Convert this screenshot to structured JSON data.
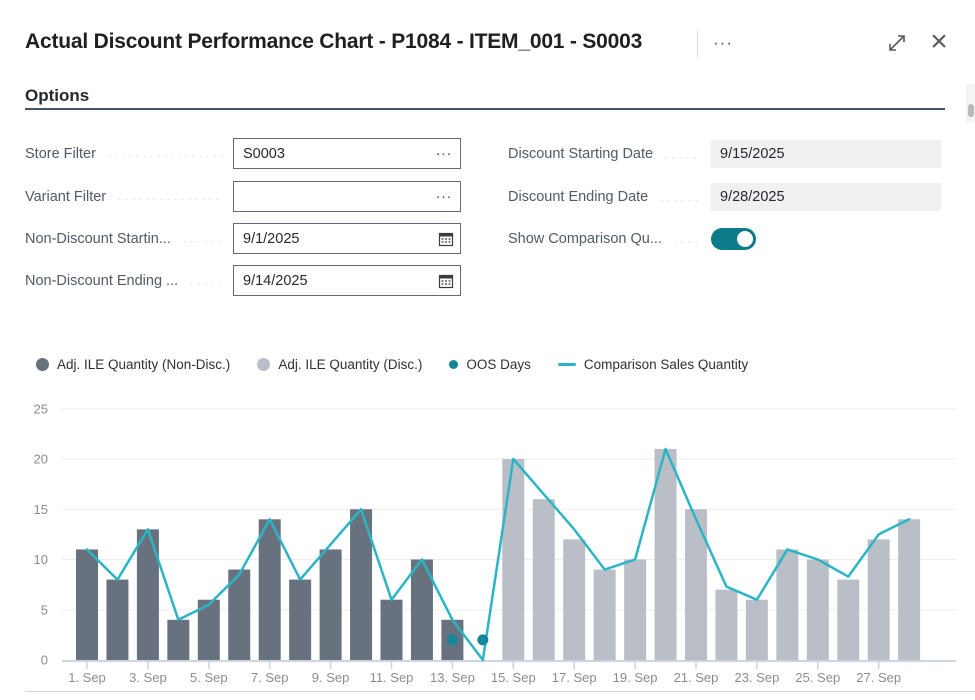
{
  "window": {
    "title": "Actual Discount Performance Chart - P1084 - ITEM_001 - S0003",
    "menu_glyph": "···",
    "close_glyph": "×"
  },
  "options": {
    "heading": "Options",
    "left_fields": [
      {
        "label": "Store Filter",
        "value": "S0003",
        "control": "assist",
        "assist_glyph": "···"
      },
      {
        "label": "Variant Filter",
        "value": "",
        "control": "assist",
        "assist_glyph": "···"
      },
      {
        "label": "Non-Discount Startin...",
        "value": "9/1/2025",
        "control": "date"
      },
      {
        "label": "Non-Discount Ending ...",
        "value": "9/14/2025",
        "control": "date"
      }
    ],
    "right_fields": [
      {
        "label": "Discount Starting Date",
        "value": "9/15/2025",
        "control": "readonly"
      },
      {
        "label": "Discount Ending Date",
        "value": "9/28/2025",
        "control": "readonly"
      },
      {
        "label": "Show Comparison Qu...",
        "control": "toggle",
        "state": "On"
      }
    ]
  },
  "colors": {
    "accent_teal": "#0D7C8A",
    "options_rule": "#44546A",
    "grid_line": "#EDEDF1",
    "axis_line": "#CCD4E4",
    "tick_mark": "#C9D2E8",
    "tick_text": "#8E8C8A"
  },
  "chart_data": {
    "type": "bar",
    "title": "",
    "xlabel": "",
    "ylabel": "",
    "ylim": [
      0,
      25
    ],
    "yticks": [
      0,
      5,
      10,
      15,
      20,
      25
    ],
    "grid": true,
    "legend_position": "top",
    "categories": [
      "1. Sep",
      "2. Sep",
      "3. Sep",
      "4. Sep",
      "5. Sep",
      "6. Sep",
      "7. Sep",
      "8. Sep",
      "9. Sep",
      "10. Sep",
      "11. Sep",
      "12. Sep",
      "13. Sep",
      "14. Sep",
      "15. Sep",
      "16. Sep",
      "17. Sep",
      "18. Sep",
      "19. Sep",
      "20. Sep",
      "21. Sep",
      "22. Sep",
      "23. Sep",
      "24. Sep",
      "25. Sep",
      "26. Sep",
      "27. Sep",
      "28. Sep"
    ],
    "xtick_every": 2,
    "series": [
      {
        "name": "Adj. ILE Quantity (Non-Disc.)",
        "type": "bar",
        "color": "#68727E",
        "values": [
          11,
          8,
          13,
          4,
          6,
          9,
          14,
          8,
          11,
          15,
          6,
          10,
          4,
          null,
          null,
          null,
          null,
          null,
          null,
          null,
          null,
          null,
          null,
          null,
          null,
          null,
          null,
          null
        ]
      },
      {
        "name": "Adj. ILE Quantity (Disc.)",
        "type": "bar",
        "color": "#B9BEC7",
        "values": [
          null,
          null,
          null,
          null,
          null,
          null,
          null,
          null,
          null,
          null,
          null,
          null,
          null,
          null,
          20,
          16,
          12,
          9,
          10,
          21,
          15,
          7,
          6,
          11,
          10,
          8,
          12,
          14
        ]
      },
      {
        "name": "OOS Days",
        "type": "scatter",
        "color": "#15869A",
        "points": [
          {
            "x": "13. Sep",
            "y": 2
          },
          {
            "x": "14. Sep",
            "y": 2
          }
        ]
      },
      {
        "name": "Comparison Sales Quantity",
        "type": "line",
        "color": "#2BB5C4",
        "values": [
          11,
          8,
          13,
          4,
          5.5,
          8.5,
          14,
          8,
          11.5,
          15,
          6,
          10,
          4,
          0,
          20,
          16.5,
          13,
          9,
          10,
          21,
          14,
          7.3,
          6,
          11,
          10,
          8.3,
          12.5,
          14
        ]
      }
    ]
  }
}
